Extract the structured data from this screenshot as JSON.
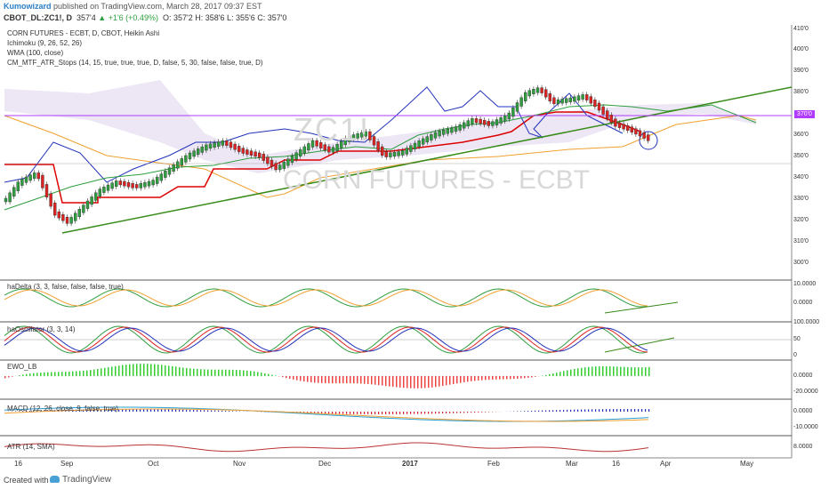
{
  "header": {
    "author": "Kumowizard",
    "published": "published on TradingView.com, March 28, 2017 09:37 EST",
    "symbol": "CBOT_DL:ZC1!, D",
    "last": "357'4",
    "change": "▲ +1'6 (+0.49%)",
    "ohlc": "O: 357'2  H: 358'6  L: 355'6  C: 357'0"
  },
  "main_pane": {
    "title": "CORN FUTURES - ECBT, D, CBOT, Heikin Ashi",
    "indicators": [
      "Ichimoku (9, 26, 52, 26)",
      "WMA (100, close)",
      "CM_MTF_ATR_Stops (14, 15, true, true, true, D, false, 5, 30, false, false, true, D)"
    ],
    "watermark_symbol": "ZC1!",
    "watermark_name": "CORN FUTURES - ECBT",
    "price_ticks": [
      "410'0",
      "400'0",
      "390'0",
      "380'0",
      "370'0",
      "360'0",
      "350'0",
      "340'0",
      "330'0",
      "320'0",
      "310'0",
      "300'0"
    ],
    "current_price_tag": "370'0"
  },
  "sub_panes": [
    {
      "label": "haDelta (3, 3, false, false, false, true)",
      "ticks": [
        "10.0000",
        "0.0000"
      ]
    },
    {
      "label": "haOscillator (3, 3, 14)",
      "ticks": [
        "100.0000",
        "50",
        "0"
      ]
    },
    {
      "label": "EWO_LB",
      "ticks": [
        "0.0000",
        "-20.0000"
      ]
    },
    {
      "label": "MACD (12, 26, close, 9, false, true)",
      "ticks": [
        "0.0000",
        "-10.0000"
      ]
    },
    {
      "label": "ATR (14, SMA)",
      "ticks": [
        "8.0000"
      ]
    }
  ],
  "x_axis": [
    "16",
    "Sep",
    "Oct",
    "Nov",
    "Dec",
    "2017",
    "Feb",
    "Mar",
    "16",
    "Apr",
    "May"
  ],
  "footer": {
    "created": "Created with",
    "brand": "TradingView"
  },
  "colors": {
    "up": "#2e9e3e",
    "down": "#d22",
    "kijun": "#d00",
    "tenkan": "#2233bb",
    "trend": "#3a8a1a",
    "level": "#b03cff",
    "wma": "#f0a030"
  }
}
